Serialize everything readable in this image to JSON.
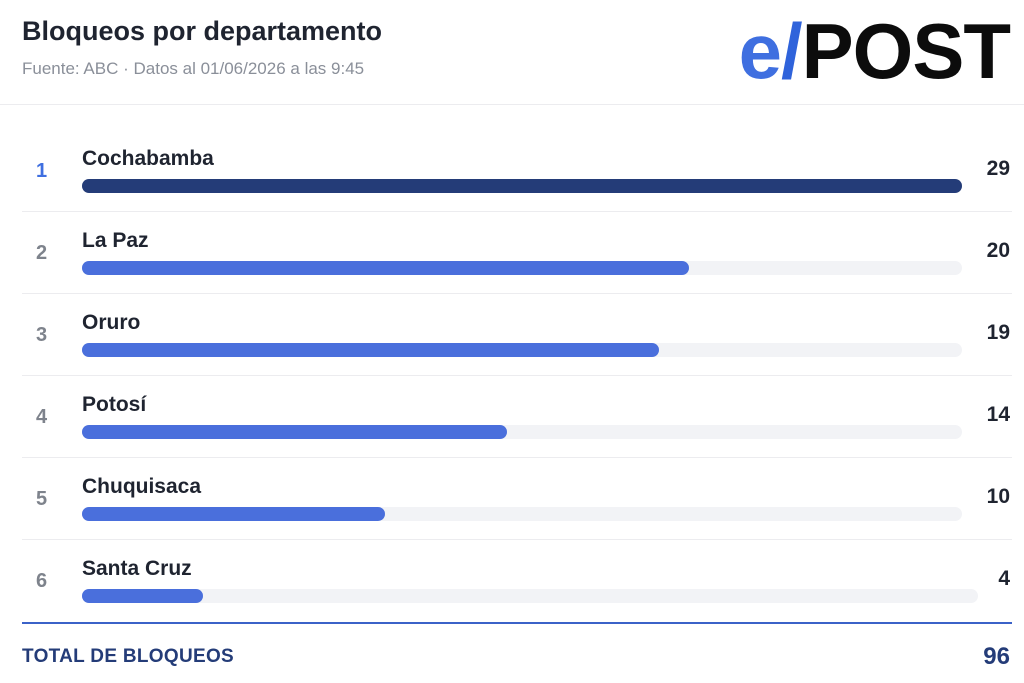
{
  "header": {
    "title": "Bloqueos por departamento",
    "subtitle": "Fuente: ABC · Datos al 01/06/2026 a las 9:45"
  },
  "logo": {
    "text": "e/POST"
  },
  "colors": {
    "accent": "#4a6fdc",
    "top_bar": "#243c78",
    "track": "#f2f3f6",
    "total_text": "#243c78"
  },
  "chart_data": {
    "type": "bar",
    "orientation": "horizontal",
    "max_value": 29,
    "rows": [
      {
        "rank": "1",
        "category": "Cochabamba",
        "value": 29
      },
      {
        "rank": "2",
        "category": "La Paz",
        "value": 20
      },
      {
        "rank": "3",
        "category": "Oruro",
        "value": 19
      },
      {
        "rank": "4",
        "category": "Potosí",
        "value": 14
      },
      {
        "rank": "5",
        "category": "Chuquisaca",
        "value": 10
      },
      {
        "rank": "6",
        "category": "Santa Cruz",
        "value": 4
      }
    ]
  },
  "total": {
    "label": "TOTAL DE BLOQUEOS",
    "value": "96"
  }
}
